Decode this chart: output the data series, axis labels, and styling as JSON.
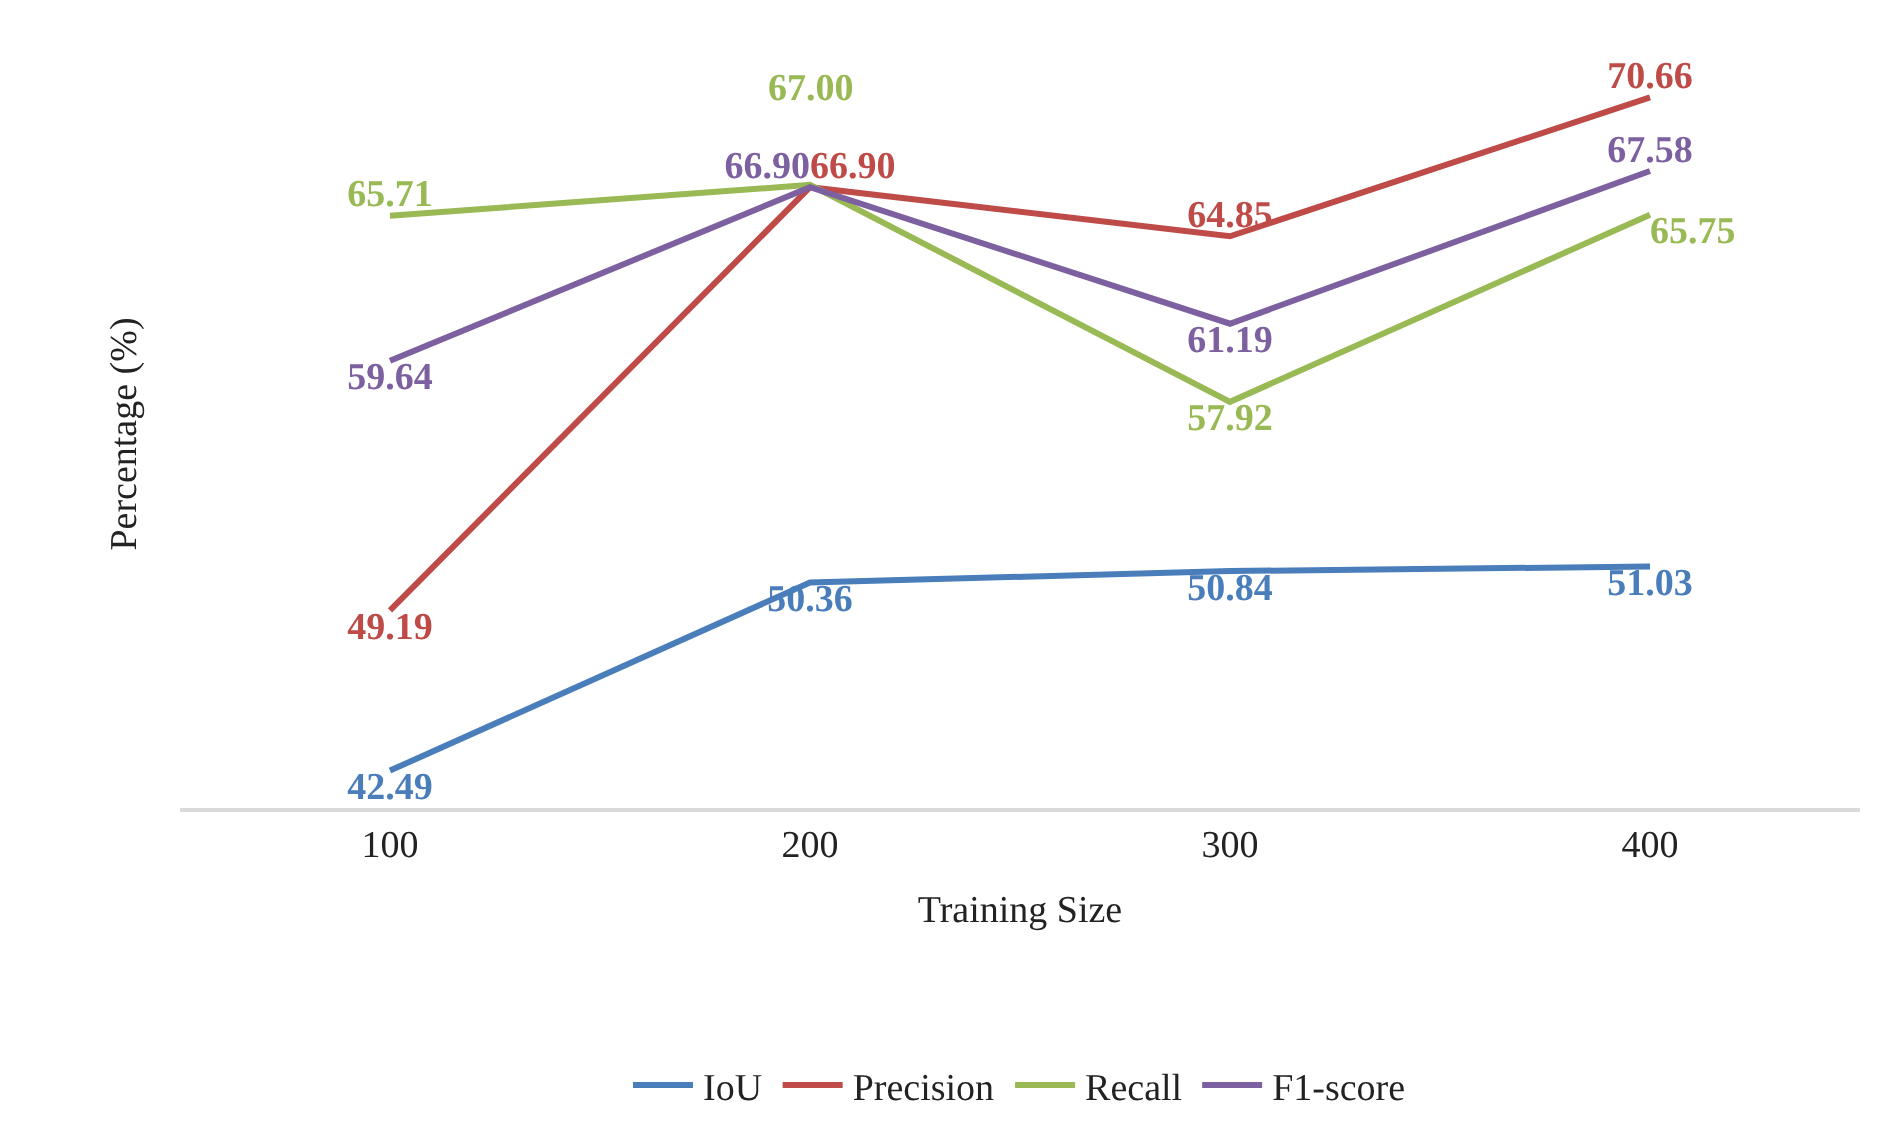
{
  "chart_data": {
    "type": "line",
    "xlabel": "Training Size",
    "ylabel": "Percentage (%)",
    "categories": [
      "100",
      "200",
      "300",
      "400"
    ],
    "series": [
      {
        "name": "IoU",
        "color": "#4a7ebb",
        "values": [
          42.49,
          50.36,
          50.84,
          51.03
        ]
      },
      {
        "name": "Precision",
        "color": "#be4b48",
        "values": [
          49.19,
          66.9,
          64.85,
          70.66
        ],
        "value_labels": [
          "49.19",
          "66.90",
          "64.85",
          "70.66"
        ]
      },
      {
        "name": "Recall",
        "color": "#98b954",
        "values": [
          65.71,
          67.0,
          57.92,
          65.75
        ],
        "value_labels": [
          "65.71",
          "67.00",
          "57.92",
          "65.75"
        ]
      },
      {
        "name": "F1-score",
        "color": "#7d60a0",
        "values": [
          59.64,
          66.9,
          61.19,
          67.58
        ],
        "value_labels": [
          "59.64",
          "66.90",
          "61.19",
          "67.58"
        ]
      }
    ],
    "data_labels": true,
    "grid": false,
    "legend": "bottom",
    "marker": "none",
    "line_style": "solid",
    "tick_labels": "x"
  }
}
